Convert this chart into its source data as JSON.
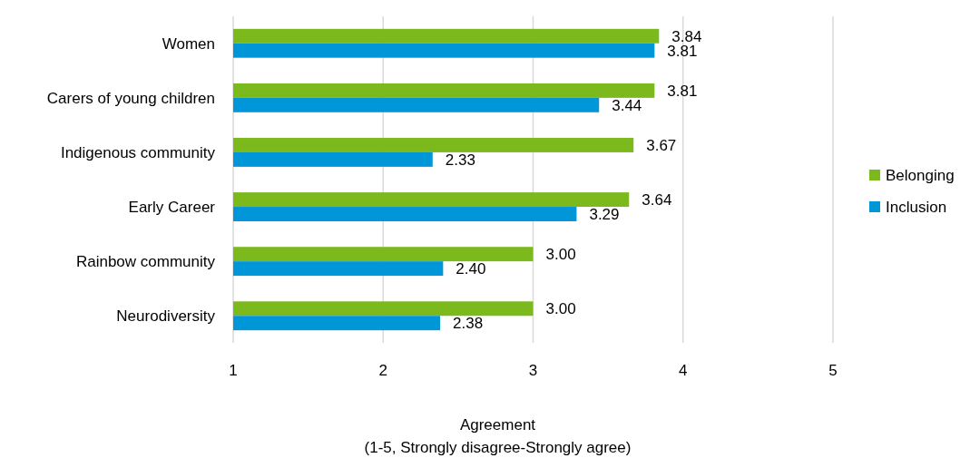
{
  "chart_data": {
    "type": "bar",
    "orientation": "horizontal",
    "categories": [
      "Women",
      "Carers of young children",
      "Indigenous community",
      "Early Career",
      "Rainbow community",
      "Neurodiversity"
    ],
    "series": [
      {
        "name": "Belonging",
        "color": "#7cb91c",
        "values": [
          3.84,
          3.81,
          3.67,
          3.64,
          3.0,
          3.0
        ],
        "value_labels": [
          "3.84",
          "3.81",
          "3.67",
          "3.64",
          "3.00",
          "3.00"
        ]
      },
      {
        "name": "Inclusion",
        "color": "#0096d8",
        "values": [
          3.81,
          3.44,
          2.33,
          3.29,
          2.4,
          2.38
        ],
        "value_labels": [
          "3.81",
          "3.44",
          "2.33",
          "3.29",
          "2.40",
          "2.38"
        ]
      }
    ],
    "xlim": [
      1,
      5
    ],
    "xticks": [
      1,
      2,
      3,
      4,
      5
    ],
    "grid": "x",
    "legend": "right",
    "xlabel": "Agreement\n(1-5, Strongly disagree-Strongly agree)"
  }
}
